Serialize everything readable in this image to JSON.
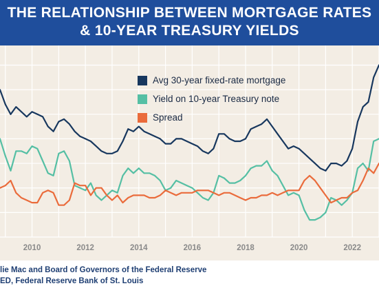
{
  "header": {
    "title_line1": "THE RELATIONSHIP BETWEEN MORTGAGE RATES",
    "title_line2": "& 10-YEAR TREASURY YIELDS"
  },
  "colors": {
    "header_bg": "#1f4e9c",
    "plot_bg": "#f3ede4",
    "mortgage": "#17375e",
    "treasury": "#55bfa4",
    "spread": "#ea6b3b"
  },
  "chart_data": {
    "type": "line",
    "title": "THE RELATIONSHIP BETWEEN MORTGAGE RATES & 10-YEAR TREASURY YIELDS",
    "x_ticks": [
      "2010",
      "2012",
      "2014",
      "2016",
      "2018",
      "2020",
      "2022"
    ],
    "xlim": [
      2008.8,
      2023.0
    ],
    "ylim": [
      0,
      7.8
    ],
    "grid": true,
    "legend_position": "top-center",
    "series": [
      {
        "name": "Avg 30-year fixed-rate mortgage",
        "color": "#17375e",
        "x": [
          2008.8,
          2009.0,
          2009.2,
          2009.4,
          2009.6,
          2009.8,
          2010.0,
          2010.2,
          2010.4,
          2010.6,
          2010.8,
          2011.0,
          2011.2,
          2011.4,
          2011.6,
          2011.8,
          2012.0,
          2012.2,
          2012.4,
          2012.6,
          2012.8,
          2013.0,
          2013.2,
          2013.4,
          2013.6,
          2013.8,
          2014.0,
          2014.2,
          2014.4,
          2014.6,
          2014.8,
          2015.0,
          2015.2,
          2015.4,
          2015.6,
          2015.8,
          2016.0,
          2016.2,
          2016.4,
          2016.6,
          2016.8,
          2017.0,
          2017.2,
          2017.4,
          2017.6,
          2017.8,
          2018.0,
          2018.2,
          2018.4,
          2018.6,
          2018.8,
          2019.0,
          2019.2,
          2019.4,
          2019.6,
          2019.8,
          2020.0,
          2020.2,
          2020.4,
          2020.6,
          2020.8,
          2021.0,
          2021.2,
          2021.4,
          2021.6,
          2021.8,
          2022.0,
          2022.2,
          2022.4,
          2022.6,
          2022.8,
          2023.0
        ],
        "values": [
          6.0,
          5.4,
          5.0,
          5.3,
          5.1,
          4.9,
          5.1,
          5.0,
          4.9,
          4.5,
          4.3,
          4.7,
          4.8,
          4.6,
          4.3,
          4.1,
          4.0,
          3.9,
          3.7,
          3.5,
          3.4,
          3.4,
          3.5,
          3.9,
          4.4,
          4.3,
          4.5,
          4.3,
          4.2,
          4.1,
          4.0,
          3.8,
          3.8,
          4.0,
          4.0,
          3.9,
          3.8,
          3.7,
          3.5,
          3.4,
          3.6,
          4.2,
          4.2,
          4.0,
          3.9,
          3.9,
          4.0,
          4.4,
          4.5,
          4.6,
          4.8,
          4.5,
          4.2,
          3.9,
          3.6,
          3.7,
          3.6,
          3.4,
          3.2,
          3.0,
          2.8,
          2.7,
          3.0,
          3.0,
          2.9,
          3.1,
          3.6,
          4.7,
          5.3,
          5.5,
          6.5,
          7.0
        ]
      },
      {
        "name": "Yield on 10-year Treasury note",
        "color": "#55bfa4",
        "x": [
          2008.8,
          2009.0,
          2009.2,
          2009.4,
          2009.6,
          2009.8,
          2010.0,
          2010.2,
          2010.4,
          2010.6,
          2010.8,
          2011.0,
          2011.2,
          2011.4,
          2011.6,
          2011.8,
          2012.0,
          2012.2,
          2012.4,
          2012.6,
          2012.8,
          2013.0,
          2013.2,
          2013.4,
          2013.6,
          2013.8,
          2014.0,
          2014.2,
          2014.4,
          2014.6,
          2014.8,
          2015.0,
          2015.2,
          2015.4,
          2015.6,
          2015.8,
          2016.0,
          2016.2,
          2016.4,
          2016.6,
          2016.8,
          2017.0,
          2017.2,
          2017.4,
          2017.6,
          2017.8,
          2018.0,
          2018.2,
          2018.4,
          2018.6,
          2018.8,
          2019.0,
          2019.2,
          2019.4,
          2019.6,
          2019.8,
          2020.0,
          2020.2,
          2020.4,
          2020.6,
          2020.8,
          2021.0,
          2021.2,
          2021.4,
          2021.6,
          2021.8,
          2022.0,
          2022.2,
          2022.4,
          2022.6,
          2022.8,
          2023.0
        ],
        "values": [
          4.0,
          3.3,
          2.7,
          3.5,
          3.5,
          3.4,
          3.7,
          3.6,
          3.1,
          2.6,
          2.5,
          3.4,
          3.5,
          3.1,
          2.1,
          2.0,
          1.9,
          2.2,
          1.7,
          1.5,
          1.7,
          1.9,
          1.8,
          2.5,
          2.8,
          2.6,
          2.8,
          2.6,
          2.6,
          2.5,
          2.3,
          1.9,
          2.0,
          2.3,
          2.2,
          2.1,
          2.0,
          1.8,
          1.6,
          1.5,
          1.8,
          2.5,
          2.4,
          2.2,
          2.2,
          2.3,
          2.5,
          2.8,
          2.9,
          2.9,
          3.1,
          2.7,
          2.5,
          2.1,
          1.7,
          1.8,
          1.7,
          1.1,
          0.7,
          0.7,
          0.8,
          1.0,
          1.6,
          1.5,
          1.3,
          1.5,
          1.8,
          2.8,
          3.0,
          2.7,
          3.9,
          4.0
        ]
      },
      {
        "name": "Spread",
        "color": "#ea6b3b",
        "x": [
          2008.8,
          2009.0,
          2009.2,
          2009.4,
          2009.6,
          2009.8,
          2010.0,
          2010.2,
          2010.4,
          2010.6,
          2010.8,
          2011.0,
          2011.2,
          2011.4,
          2011.6,
          2011.8,
          2012.0,
          2012.2,
          2012.4,
          2012.6,
          2012.8,
          2013.0,
          2013.2,
          2013.4,
          2013.6,
          2013.8,
          2014.0,
          2014.2,
          2014.4,
          2014.6,
          2014.8,
          2015.0,
          2015.2,
          2015.4,
          2015.6,
          2015.8,
          2016.0,
          2016.2,
          2016.4,
          2016.6,
          2016.8,
          2017.0,
          2017.2,
          2017.4,
          2017.6,
          2017.8,
          2018.0,
          2018.2,
          2018.4,
          2018.6,
          2018.8,
          2019.0,
          2019.2,
          2019.4,
          2019.6,
          2019.8,
          2020.0,
          2020.2,
          2020.4,
          2020.6,
          2020.8,
          2021.0,
          2021.2,
          2021.4,
          2021.6,
          2021.8,
          2022.0,
          2022.2,
          2022.4,
          2022.6,
          2022.8,
          2023.0
        ],
        "values": [
          2.0,
          2.1,
          2.3,
          1.8,
          1.6,
          1.5,
          1.4,
          1.4,
          1.8,
          1.9,
          1.8,
          1.3,
          1.3,
          1.5,
          2.2,
          2.1,
          2.1,
          1.7,
          2.0,
          2.0,
          1.7,
          1.5,
          1.7,
          1.4,
          1.6,
          1.7,
          1.7,
          1.7,
          1.6,
          1.6,
          1.7,
          1.9,
          1.8,
          1.7,
          1.8,
          1.8,
          1.8,
          1.9,
          1.9,
          1.9,
          1.8,
          1.7,
          1.8,
          1.8,
          1.7,
          1.6,
          1.5,
          1.6,
          1.6,
          1.7,
          1.7,
          1.8,
          1.7,
          1.8,
          1.9,
          1.9,
          1.9,
          2.3,
          2.5,
          2.3,
          2.0,
          1.7,
          1.4,
          1.5,
          1.6,
          1.6,
          1.8,
          1.9,
          2.3,
          2.8,
          2.6,
          3.0
        ]
      }
    ]
  },
  "source": {
    "line1": "lie Mac and Board of Governors of the Federal Reserve",
    "line2": "ED, Federal Reserve Bank of St. Louis"
  }
}
